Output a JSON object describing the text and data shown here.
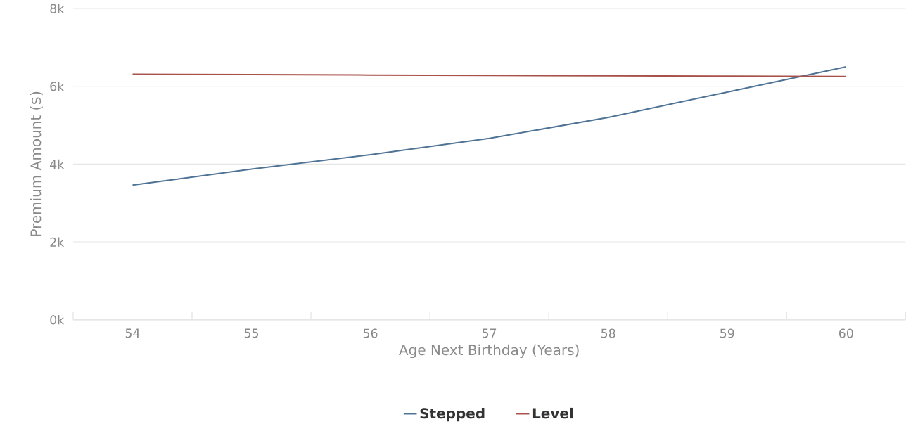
{
  "chart_data": {
    "type": "line",
    "xlabel": "Age Next Birthday (Years)",
    "ylabel": "Premium Amount ($)",
    "categories": [
      "54",
      "55",
      "56",
      "57",
      "58",
      "59",
      "60"
    ],
    "series": [
      {
        "name": "Stepped",
        "color": "#4f7394",
        "values": [
          3460,
          3870,
          4240,
          4660,
          5200,
          5850,
          6500
        ]
      },
      {
        "name": "Level",
        "color": "#a8514a",
        "values": [
          6310,
          6300,
          6290,
          6280,
          6270,
          6260,
          6250
        ]
      }
    ],
    "ylim": [
      0,
      8000
    ],
    "yticks": [
      {
        "value": 0,
        "label": "0k"
      },
      {
        "value": 2000,
        "label": "2k"
      },
      {
        "value": 4000,
        "label": "4k"
      },
      {
        "value": 6000,
        "label": "6k"
      },
      {
        "value": 8000,
        "label": "8k"
      }
    ],
    "grid": "y",
    "legend": "bottom",
    "marker": "none",
    "line_style": "solid"
  }
}
